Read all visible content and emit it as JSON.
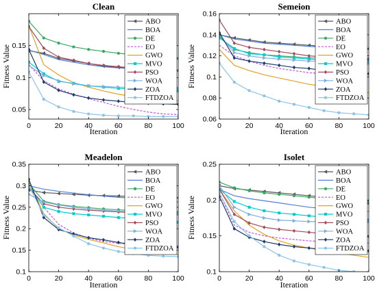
{
  "chart_data": [
    {
      "type": "line",
      "title": "Clean",
      "xlabel": "Iteration",
      "ylabel": "Fitness Value",
      "xlim": [
        0,
        100
      ],
      "ylim": [
        0.035,
        0.2
      ],
      "xticks": [
        0,
        20,
        40,
        60,
        80,
        100
      ],
      "yticks": [
        0.05,
        0.1,
        0.15
      ],
      "ytick_labels": [
        "0.05",
        "0.1",
        "0.15"
      ],
      "x": [
        0,
        10,
        20,
        30,
        40,
        50,
        60,
        70,
        80,
        90,
        100
      ],
      "legend": "top-right",
      "series": [
        {
          "name": "ABO",
          "color": "#555555",
          "marker": "triangle-left",
          "values": [
            0.142,
            0.138,
            0.13,
            0.126,
            0.122,
            0.118,
            0.116,
            0.114,
            0.113,
            0.112,
            0.111
          ]
        },
        {
          "name": "BOA",
          "color": "#4f7fd6",
          "marker": "none",
          "values": [
            0.143,
            0.136,
            0.128,
            0.124,
            0.12,
            0.117,
            0.115,
            0.114,
            0.113,
            0.112,
            0.111
          ]
        },
        {
          "name": "DE",
          "color": "#3aa864",
          "marker": "circle",
          "values": [
            0.188,
            0.162,
            0.154,
            0.148,
            0.144,
            0.141,
            0.138,
            0.136,
            0.134,
            0.132,
            0.13
          ]
        },
        {
          "name": "EO",
          "color": "#c050d8",
          "marker": "none",
          "dashed": true,
          "values": [
            0.12,
            0.095,
            0.082,
            0.074,
            0.067,
            0.061,
            0.055,
            0.05,
            0.046,
            0.043,
            0.042
          ]
        },
        {
          "name": "GWO",
          "color": "#e0a020",
          "marker": "none",
          "values": [
            0.181,
            0.12,
            0.104,
            0.092,
            0.085,
            0.079,
            0.074,
            0.07,
            0.067,
            0.065,
            0.064
          ]
        },
        {
          "name": "MVO",
          "color": "#00cccc",
          "marker": "square",
          "values": [
            0.124,
            0.106,
            0.094,
            0.091,
            0.087,
            0.085,
            0.083,
            0.082,
            0.081,
            0.08,
            0.079
          ]
        },
        {
          "name": "PSO",
          "color": "#a04a5a",
          "marker": "diamond",
          "values": [
            0.18,
            0.146,
            0.132,
            0.127,
            0.122,
            0.119,
            0.117,
            0.115,
            0.113,
            0.112,
            0.111
          ]
        },
        {
          "name": "WOA",
          "color": "#7aaee0",
          "marker": "triangle-right",
          "values": [
            0.119,
            0.103,
            0.095,
            0.09,
            0.087,
            0.086,
            0.085,
            0.084,
            0.084,
            0.083,
            0.083
          ]
        },
        {
          "name": "ZOA",
          "color": "#1a3a6a",
          "marker": "diamond",
          "values": [
            0.144,
            0.093,
            0.08,
            0.073,
            0.068,
            0.065,
            0.063,
            0.061,
            0.06,
            0.059,
            0.058
          ]
        },
        {
          "name": "FTDZOA",
          "color": "#8ac4e8",
          "marker": "circle",
          "values": [
            0.109,
            0.066,
            0.054,
            0.047,
            0.043,
            0.041,
            0.04,
            0.04,
            0.039,
            0.039,
            0.039
          ]
        }
      ]
    },
    {
      "type": "line",
      "title": "Semeion",
      "xlabel": "Iteration",
      "ylabel": "Fitness Value",
      "xlim": [
        0,
        100
      ],
      "ylim": [
        0.06,
        0.16
      ],
      "xticks": [
        0,
        20,
        40,
        60,
        80,
        100
      ],
      "yticks": [
        0.06,
        0.08,
        0.1,
        0.12,
        0.14,
        0.16
      ],
      "ytick_labels": [
        "0.06",
        "0.08",
        "0.1",
        "0.12",
        "0.14",
        "0.16"
      ],
      "x": [
        0,
        10,
        20,
        30,
        40,
        50,
        60,
        70,
        80,
        90,
        100
      ],
      "legend": "top-right",
      "series": [
        {
          "name": "ABO",
          "color": "#555555",
          "marker": "triangle-left",
          "values": [
            0.14,
            0.137,
            0.135,
            0.133,
            0.132,
            0.131,
            0.13,
            0.129,
            0.128,
            0.128,
            0.127
          ]
        },
        {
          "name": "BOA",
          "color": "#4f7fd6",
          "marker": "none",
          "values": [
            0.14,
            0.136,
            0.134,
            0.132,
            0.131,
            0.13,
            0.129,
            0.128,
            0.127,
            0.127,
            0.126
          ]
        },
        {
          "name": "DE",
          "color": "#3aa864",
          "marker": "circle",
          "values": [
            0.138,
            0.126,
            0.123,
            0.121,
            0.12,
            0.119,
            0.118,
            0.118,
            0.117,
            0.117,
            0.117
          ]
        },
        {
          "name": "EO",
          "color": "#c050d8",
          "marker": "none",
          "dashed": true,
          "values": [
            0.13,
            0.12,
            0.115,
            0.111,
            0.108,
            0.106,
            0.104,
            0.103,
            0.102,
            0.101,
            0.1
          ]
        },
        {
          "name": "GWO",
          "color": "#e0a020",
          "marker": "none",
          "values": [
            0.126,
            0.111,
            0.106,
            0.102,
            0.099,
            0.096,
            0.093,
            0.091,
            0.089,
            0.087,
            0.085
          ]
        },
        {
          "name": "MVO",
          "color": "#00cccc",
          "marker": "square",
          "values": [
            0.137,
            0.127,
            0.122,
            0.121,
            0.119,
            0.118,
            0.117,
            0.116,
            0.116,
            0.115,
            0.115
          ]
        },
        {
          "name": "PSO",
          "color": "#a04a5a",
          "marker": "diamond",
          "values": [
            0.154,
            0.132,
            0.128,
            0.126,
            0.124,
            0.122,
            0.12,
            0.119,
            0.118,
            0.118,
            0.117
          ]
        },
        {
          "name": "WOA",
          "color": "#7aaee0",
          "marker": "triangle-right",
          "values": [
            0.14,
            0.123,
            0.12,
            0.118,
            0.117,
            0.116,
            0.115,
            0.115,
            0.114,
            0.114,
            0.113
          ]
        },
        {
          "name": "ZOA",
          "color": "#1a3a6a",
          "marker": "diamond",
          "values": [
            0.142,
            0.118,
            0.115,
            0.113,
            0.111,
            0.109,
            0.108,
            0.106,
            0.105,
            0.104,
            0.103
          ]
        },
        {
          "name": "FTDZOA",
          "color": "#8ac4e8",
          "marker": "circle",
          "values": [
            0.113,
            0.095,
            0.087,
            0.082,
            0.077,
            0.074,
            0.071,
            0.068,
            0.066,
            0.065,
            0.064
          ]
        }
      ]
    },
    {
      "type": "line",
      "title": "Meadelon",
      "xlabel": "Iteration",
      "ylabel": "Fitness Value",
      "xlim": [
        0,
        100
      ],
      "ylim": [
        0.1,
        0.35
      ],
      "xticks": [
        0,
        20,
        40,
        60,
        80,
        100
      ],
      "yticks": [
        0.1,
        0.15,
        0.2,
        0.25,
        0.3,
        0.35
      ],
      "ytick_labels": [
        "0.1",
        "0.15",
        "0.2",
        "0.25",
        "0.3",
        "0.35"
      ],
      "x": [
        0,
        10,
        20,
        30,
        40,
        50,
        60,
        70,
        80,
        90,
        100
      ],
      "legend": "top-right",
      "series": [
        {
          "name": "ABO",
          "color": "#555555",
          "marker": "triangle-left",
          "values": [
            0.29,
            0.284,
            0.282,
            0.28,
            0.278,
            0.277,
            0.276,
            0.275,
            0.274,
            0.273,
            0.272
          ]
        },
        {
          "name": "BOA",
          "color": "#4f7fd6",
          "marker": "none",
          "values": [
            0.3,
            0.292,
            0.287,
            0.283,
            0.279,
            0.276,
            0.273,
            0.271,
            0.268,
            0.266,
            0.262
          ]
        },
        {
          "name": "DE",
          "color": "#3aa864",
          "marker": "circle",
          "values": [
            0.305,
            0.264,
            0.256,
            0.252,
            0.249,
            0.246,
            0.244,
            0.242,
            0.24,
            0.239,
            0.238
          ]
        },
        {
          "name": "EO",
          "color": "#c050d8",
          "marker": "none",
          "dashed": true,
          "values": [
            0.3,
            0.25,
            0.21,
            0.19,
            0.178,
            0.17,
            0.166,
            0.163,
            0.161,
            0.16,
            0.16
          ]
        },
        {
          "name": "GWO",
          "color": "#e0a020",
          "marker": "none",
          "values": [
            0.31,
            0.235,
            0.2,
            0.185,
            0.175,
            0.167,
            0.158,
            0.152,
            0.147,
            0.143,
            0.14
          ]
        },
        {
          "name": "MVO",
          "color": "#00cccc",
          "marker": "square",
          "values": [
            0.3,
            0.25,
            0.24,
            0.235,
            0.232,
            0.229,
            0.226,
            0.224,
            0.222,
            0.22,
            0.215
          ]
        },
        {
          "name": "PSO",
          "color": "#a04a5a",
          "marker": "diamond",
          "values": [
            0.295,
            0.258,
            0.25,
            0.246,
            0.243,
            0.241,
            0.239,
            0.237,
            0.236,
            0.235,
            0.234
          ]
        },
        {
          "name": "WOA",
          "color": "#7aaee0",
          "marker": "triangle-right",
          "values": [
            0.28,
            0.262,
            0.255,
            0.25,
            0.246,
            0.243,
            0.241,
            0.239,
            0.237,
            0.236,
            0.235
          ]
        },
        {
          "name": "ZOA",
          "color": "#1a3a6a",
          "marker": "diamond",
          "values": [
            0.315,
            0.226,
            0.198,
            0.188,
            0.179,
            0.174,
            0.168,
            0.163,
            0.16,
            0.158,
            0.157
          ]
        },
        {
          "name": "FTDZOA",
          "color": "#8ac4e8",
          "marker": "circle",
          "values": [
            0.3,
            0.232,
            0.202,
            0.183,
            0.165,
            0.155,
            0.147,
            0.142,
            0.138,
            0.136,
            0.135
          ]
        }
      ]
    },
    {
      "type": "line",
      "title": "Isolet",
      "xlabel": "Iteration",
      "ylabel": "Fitness Value",
      "xlim": [
        0,
        100
      ],
      "ylim": [
        0.1,
        0.25
      ],
      "xticks": [
        0,
        20,
        40,
        60,
        80,
        100
      ],
      "yticks": [
        0.1,
        0.15,
        0.2,
        0.25
      ],
      "ytick_labels": [
        "0.1",
        "0.15",
        "0.2",
        "0.25"
      ],
      "x": [
        0,
        10,
        20,
        30,
        40,
        50,
        60,
        70,
        80,
        90,
        100
      ],
      "legend": "top-right",
      "series": [
        {
          "name": "ABO",
          "color": "#555555",
          "marker": "triangle-left",
          "values": [
            0.22,
            0.216,
            0.214,
            0.212,
            0.21,
            0.208,
            0.206,
            0.204,
            0.202,
            0.199,
            0.195
          ]
        },
        {
          "name": "BOA",
          "color": "#4f7fd6",
          "marker": "none",
          "values": [
            0.215,
            0.206,
            0.202,
            0.199,
            0.196,
            0.193,
            0.19,
            0.188,
            0.186,
            0.185,
            0.184
          ]
        },
        {
          "name": "DE",
          "color": "#3aa864",
          "marker": "circle",
          "values": [
            0.225,
            0.217,
            0.213,
            0.21,
            0.208,
            0.206,
            0.204,
            0.202,
            0.2,
            0.199,
            0.198
          ]
        },
        {
          "name": "EO",
          "color": "#c050d8",
          "marker": "none",
          "dashed": true,
          "values": [
            0.21,
            0.165,
            0.155,
            0.15,
            0.147,
            0.145,
            0.143,
            0.142,
            0.141,
            0.14,
            0.14
          ]
        },
        {
          "name": "GWO",
          "color": "#e0a020",
          "marker": "none",
          "values": [
            0.215,
            0.185,
            0.165,
            0.152,
            0.143,
            0.137,
            0.133,
            0.129,
            0.126,
            0.123,
            0.12
          ]
        },
        {
          "name": "MVO",
          "color": "#00cccc",
          "marker": "square",
          "values": [
            0.215,
            0.198,
            0.19,
            0.185,
            0.182,
            0.18,
            0.178,
            0.176,
            0.175,
            0.173,
            0.172
          ]
        },
        {
          "name": "PSO",
          "color": "#a04a5a",
          "marker": "diamond",
          "values": [
            0.215,
            0.18,
            0.168,
            0.162,
            0.159,
            0.157,
            0.155,
            0.153,
            0.151,
            0.15,
            0.149
          ]
        },
        {
          "name": "WOA",
          "color": "#7aaee0",
          "marker": "triangle-right",
          "values": [
            0.22,
            0.19,
            0.18,
            0.175,
            0.172,
            0.171,
            0.17,
            0.17,
            0.17,
            0.17,
            0.17
          ]
        },
        {
          "name": "ZOA",
          "color": "#1a3a6a",
          "marker": "diamond",
          "values": [
            0.205,
            0.16,
            0.148,
            0.142,
            0.138,
            0.135,
            0.133,
            0.131,
            0.13,
            0.129,
            0.129
          ]
        },
        {
          "name": "FTDZOA",
          "color": "#8ac4e8",
          "marker": "circle",
          "values": [
            0.21,
            0.17,
            0.15,
            0.135,
            0.123,
            0.115,
            0.11,
            0.106,
            0.102,
            0.1,
            0.099
          ]
        }
      ]
    }
  ]
}
